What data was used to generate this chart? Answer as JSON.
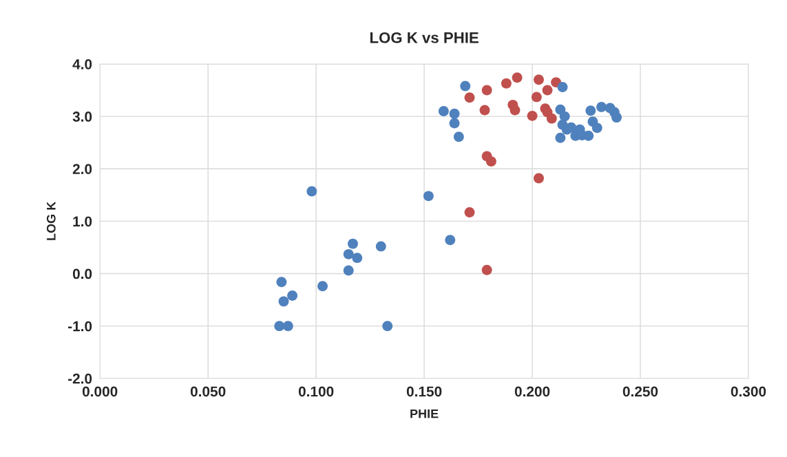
{
  "chart_data": {
    "type": "scatter",
    "title": "LOG K vs PHIE",
    "xlabel": "PHIE",
    "ylabel": "LOG K",
    "series": [
      {
        "color": "#4f81bd",
        "x": [
          0.083,
          0.087,
          0.085,
          0.089,
          0.084,
          0.103,
          0.133,
          0.115,
          0.115,
          0.119,
          0.117,
          0.13,
          0.098,
          0.152,
          0.162,
          0.169,
          0.159,
          0.164,
          0.164,
          0.166
        ],
        "values": [
          -1.0,
          -1.0,
          -0.53,
          -0.42,
          -0.16,
          -0.24,
          -1.0,
          0.06,
          0.37,
          0.3,
          0.57,
          0.52,
          1.57,
          1.48,
          0.64,
          3.58,
          3.1,
          3.05,
          2.87,
          2.61
        ]
      },
      {
        "color": "#c0504d",
        "x": [
          0.193,
          0.188,
          0.203,
          0.211,
          0.179,
          0.207,
          0.171,
          0.202,
          0.178,
          0.191,
          0.192,
          0.2,
          0.206,
          0.207,
          0.209,
          0.179,
          0.181,
          0.203,
          0.171,
          0.179
        ],
        "values": [
          3.74,
          3.63,
          3.7,
          3.65,
          3.5,
          3.5,
          3.36,
          3.37,
          3.12,
          3.22,
          3.12,
          3.01,
          3.15,
          3.08,
          2.96,
          2.24,
          2.14,
          1.82,
          1.17,
          0.07
        ]
      },
      {
        "color": "#4f81bd",
        "x": [
          0.214,
          0.213,
          0.215,
          0.214,
          0.216,
          0.218,
          0.213,
          0.22,
          0.222,
          0.223,
          0.226,
          0.228,
          0.23,
          0.227,
          0.232,
          0.236,
          0.238,
          0.239
        ],
        "values": [
          3.56,
          3.13,
          3.0,
          2.84,
          2.75,
          2.79,
          2.59,
          2.63,
          2.75,
          2.64,
          2.63,
          2.9,
          2.78,
          3.11,
          3.18,
          3.16,
          3.08,
          2.98
        ]
      }
    ],
    "xlim": [
      0,
      0.3
    ],
    "xticks": [
      {
        "value": 0,
        "label": "0.000"
      },
      {
        "value": 0.05,
        "label": "0.050"
      },
      {
        "value": 0.1,
        "label": "0.100"
      },
      {
        "value": 0.15,
        "label": "0.150"
      },
      {
        "value": 0.2,
        "label": "0.200"
      },
      {
        "value": 0.25,
        "label": "0.250"
      },
      {
        "value": 0.3,
        "label": "0.300"
      }
    ],
    "ylim": [
      -2,
      4
    ],
    "yticks": [
      {
        "value": -2,
        "label": "-2.0"
      },
      {
        "value": -1,
        "label": "-1.0"
      },
      {
        "value": 0,
        "label": "0.0"
      },
      {
        "value": 1,
        "label": "1.0"
      },
      {
        "value": 2,
        "label": "2.0"
      },
      {
        "value": 3,
        "label": "3.0"
      },
      {
        "value": 4,
        "label": "4.0"
      }
    ],
    "grid": true,
    "marker": "circle",
    "legend": false
  }
}
